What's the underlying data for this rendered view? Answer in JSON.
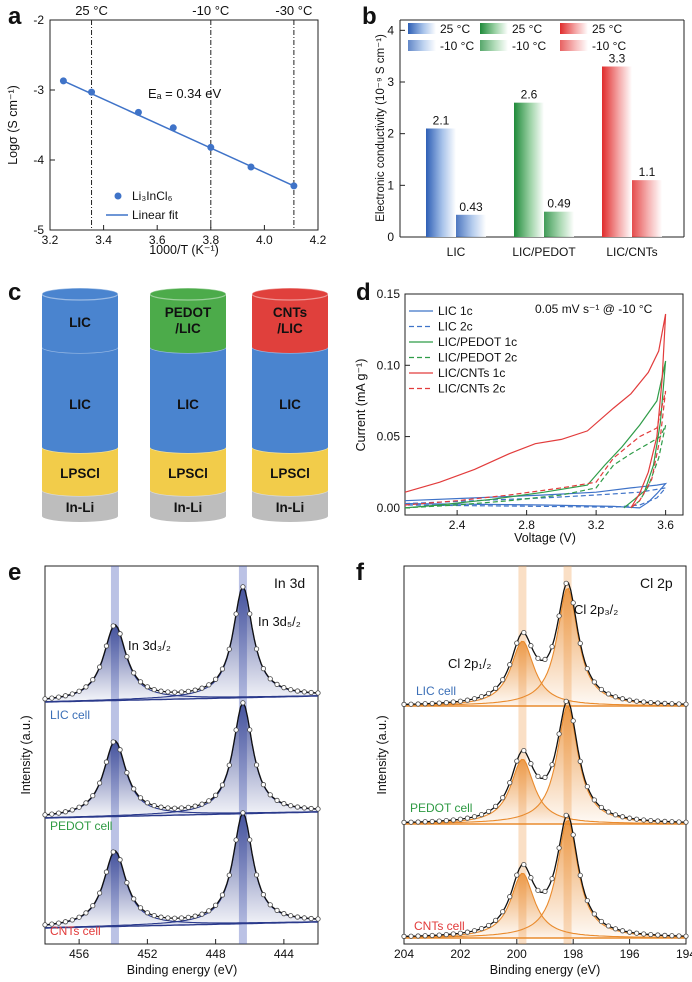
{
  "panel_labels": {
    "a": "a",
    "b": "b",
    "c": "c",
    "d": "d",
    "e": "e",
    "f": "f"
  },
  "colors": {
    "blue": "#3f73c8",
    "green": "#2f9c48",
    "red": "#e23c3c",
    "navy": "#2b3a8c",
    "orange": "#e98b2e",
    "cyl_blue": "#4a84cf",
    "cyl_green": "#4cab4a",
    "cyl_red": "#e0403c",
    "cyl_yellow": "#f2cc4a",
    "cyl_gray": "#bdbdbd",
    "label_blue": "#3b6fb7",
    "label_green": "#2e9a43",
    "label_red": "#e23b3b"
  },
  "chart_data": [
    {
      "id": "a",
      "type": "scatter",
      "xlabel": "1000/T (K⁻¹)",
      "ylabel": "Logσ (S cm⁻¹)",
      "xlim": [
        3.2,
        4.2
      ],
      "ylim": [
        -5,
        -2
      ],
      "xticks": [
        "3.2",
        "3.4",
        "3.6",
        "3.8",
        "4.0",
        "4.2"
      ],
      "yticks": [
        "-5",
        "-4",
        "-3",
        "-2"
      ],
      "points": [
        [
          3.25,
          -2.87
        ],
        [
          3.355,
          -3.03
        ],
        [
          3.53,
          -3.32
        ],
        [
          3.66,
          -3.54
        ],
        [
          3.8,
          -3.82
        ],
        [
          3.95,
          -4.1
        ],
        [
          4.11,
          -4.37
        ]
      ],
      "fit": [
        [
          3.25,
          -2.87
        ],
        [
          4.11,
          -4.37
        ]
      ],
      "top_markers": [
        {
          "x": 3.355,
          "label": "25 °C"
        },
        {
          "x": 3.8,
          "label": "-10 °C"
        },
        {
          "x": 4.11,
          "label": "-30 °C"
        }
      ],
      "annotation": "Eₐ = 0.34 eV",
      "legend": [
        "Li₃InCl₆",
        "Linear fit"
      ]
    },
    {
      "id": "b",
      "type": "bar",
      "ylabel": "Electronic conductivity (10⁻⁹ S cm⁻¹)",
      "categories": [
        "LIC",
        "LIC/PEDOT",
        "LIC/CNTs"
      ],
      "series": [
        {
          "name": "25 °C",
          "values": [
            2.1,
            2.6,
            3.3
          ]
        },
        {
          "name": "-10 °C",
          "values": [
            0.43,
            0.49,
            1.1
          ]
        }
      ],
      "data_labels": [
        [
          "2.1",
          "0.43"
        ],
        [
          "2.6",
          "0.49"
        ],
        [
          "3.3",
          "1.1"
        ]
      ],
      "ylim": [
        0,
        4.2
      ],
      "yticks": [
        "0",
        "1",
        "2",
        "3",
        "4"
      ],
      "legend": [
        "25 °C",
        "25 °C",
        "25 °C",
        "-10 °C",
        "-10 °C",
        "-10 °C"
      ]
    },
    {
      "id": "d",
      "type": "line",
      "xlabel": "Voltage (V)",
      "ylabel": "Current (mA g⁻¹)",
      "xlim": [
        2.1,
        3.7
      ],
      "ylim": [
        -0.005,
        0.15
      ],
      "xticks": [
        "2.4",
        "2.8",
        "3.2",
        "3.6"
      ],
      "yticks": [
        "0.00",
        "0.05",
        "0.10",
        "0.15"
      ],
      "annotation": "0.05 mV s⁻¹ @ -10 °C",
      "series": [
        {
          "name": "LIC 1c",
          "color": "blue",
          "dash": false,
          "fwd": [
            [
              2.1,
              0.005
            ],
            [
              2.5,
              0.007
            ],
            [
              2.9,
              0.009
            ],
            [
              3.2,
              0.011
            ],
            [
              3.4,
              0.014
            ],
            [
              3.55,
              0.016
            ],
            [
              3.6,
              0.017
            ]
          ],
          "back": [
            [
              3.6,
              0.017
            ],
            [
              3.55,
              0.01
            ],
            [
              3.5,
              0.004
            ],
            [
              3.45,
              0.0
            ],
            [
              3.3,
              0.001
            ],
            [
              2.9,
              0.002
            ],
            [
              2.1,
              0.003
            ]
          ]
        },
        {
          "name": "LIC 2c",
          "color": "blue",
          "dash": true,
          "fwd": [
            [
              2.1,
              0.003
            ],
            [
              2.5,
              0.005
            ],
            [
              2.9,
              0.007
            ],
            [
              3.2,
              0.009
            ],
            [
              3.45,
              0.011
            ],
            [
              3.6,
              0.014
            ]
          ],
          "back": [
            [
              3.6,
              0.014
            ],
            [
              3.55,
              0.007
            ],
            [
              3.45,
              0.002
            ],
            [
              3.3,
              0.0005
            ],
            [
              2.9,
              0.001
            ],
            [
              2.1,
              0.002
            ]
          ]
        },
        {
          "name": "LIC/PEDOT 1c",
          "color": "green",
          "dash": false,
          "fwd": [
            [
              2.1,
              0.0
            ],
            [
              2.3,
              0.002
            ],
            [
              2.6,
              0.006
            ],
            [
              2.9,
              0.011
            ],
            [
              3.15,
              0.016
            ],
            [
              3.25,
              0.03
            ],
            [
              3.35,
              0.043
            ],
            [
              3.45,
              0.058
            ],
            [
              3.55,
              0.075
            ],
            [
              3.6,
              0.103
            ]
          ],
          "back": [
            [
              3.6,
              0.103
            ],
            [
              3.57,
              0.06
            ],
            [
              3.53,
              0.03
            ],
            [
              3.48,
              0.012
            ],
            [
              3.4,
              0.004
            ],
            [
              3.36,
              0.0
            ]
          ]
        },
        {
          "name": "LIC/PEDOT 2c",
          "color": "green",
          "dash": true,
          "fwd": [
            [
              2.1,
              0.0
            ],
            [
              2.4,
              0.002
            ],
            [
              2.7,
              0.005
            ],
            [
              3.0,
              0.009
            ],
            [
              3.2,
              0.014
            ],
            [
              3.3,
              0.03
            ],
            [
              3.4,
              0.038
            ],
            [
              3.5,
              0.045
            ],
            [
              3.57,
              0.05
            ],
            [
              3.6,
              0.058
            ]
          ],
          "back": [
            [
              3.6,
              0.058
            ],
            [
              3.56,
              0.035
            ],
            [
              3.5,
              0.015
            ],
            [
              3.45,
              0.005
            ],
            [
              3.4,
              0.0
            ]
          ]
        },
        {
          "name": "LIC/CNTs 1c",
          "color": "red",
          "dash": false,
          "fwd": [
            [
              2.1,
              0.011
            ],
            [
              2.3,
              0.018
            ],
            [
              2.5,
              0.027
            ],
            [
              2.7,
              0.038
            ],
            [
              2.85,
              0.045
            ],
            [
              3.0,
              0.048
            ],
            [
              3.15,
              0.054
            ],
            [
              3.3,
              0.07
            ],
            [
              3.4,
              0.08
            ],
            [
              3.5,
              0.095
            ],
            [
              3.56,
              0.11
            ],
            [
              3.6,
              0.136
            ]
          ],
          "back": [
            [
              3.6,
              0.136
            ],
            [
              3.58,
              0.09
            ],
            [
              3.55,
              0.05
            ],
            [
              3.5,
              0.025
            ],
            [
              3.45,
              0.01
            ],
            [
              3.4,
              0.0
            ]
          ]
        },
        {
          "name": "LIC/CNTs 2c",
          "color": "red",
          "dash": true,
          "fwd": [
            [
              2.1,
              0.002
            ],
            [
              2.4,
              0.005
            ],
            [
              2.7,
              0.009
            ],
            [
              3.0,
              0.014
            ],
            [
              3.2,
              0.018
            ],
            [
              3.3,
              0.035
            ],
            [
              3.45,
              0.05
            ],
            [
              3.55,
              0.056
            ],
            [
              3.6,
              0.082
            ]
          ],
          "back": [
            [
              3.6,
              0.082
            ],
            [
              3.57,
              0.05
            ],
            [
              3.52,
              0.02
            ],
            [
              3.45,
              0.005
            ],
            [
              3.4,
              0.0
            ]
          ]
        }
      ]
    },
    {
      "id": "e",
      "type": "line",
      "title": "In 3d",
      "xlabel": "Binding energy (eV)",
      "ylabel": "Intensity (a.u.)",
      "xlim": [
        458,
        442
      ],
      "xticks": [
        "456",
        "452",
        "448",
        "444"
      ],
      "peak_positions": [
        453.9,
        446.4
      ],
      "peak_labels": [
        "In 3d₃/₂",
        "In 3d₅/₂"
      ],
      "peak_relative_heights": [
        0.68,
        1.0
      ],
      "stacks": [
        "LIC cell",
        "PEDOT cell",
        "CNTs cell"
      ]
    },
    {
      "id": "f",
      "type": "line",
      "title": "Cl 2p",
      "xlabel": "Binding energy (eV)",
      "ylabel": "Intensity (a.u.)",
      "xlim": [
        204,
        194
      ],
      "xticks": [
        "204",
        "202",
        "200",
        "198",
        "196",
        "194"
      ],
      "peak_positions": [
        199.8,
        198.2
      ],
      "peak_labels": [
        "Cl 2p₁/₂",
        "Cl 2p₃/₂"
      ],
      "peak_relative_heights": [
        0.55,
        1.0
      ],
      "stacks": [
        "LIC cell",
        "PEDOT cell",
        "CNTs cell"
      ]
    }
  ],
  "panel_c": {
    "cells": [
      {
        "top": "LIC",
        "mid": "LIC",
        "solid": "LPSCl",
        "anode": "In-Li",
        "top_color": "cyl_blue"
      },
      {
        "top": "PEDOT\n/LIC",
        "mid": "LIC",
        "solid": "LPSCl",
        "anode": "In-Li",
        "top_color": "cyl_green"
      },
      {
        "top": "CNTs\n/LIC",
        "mid": "LIC",
        "solid": "LPSCl",
        "anode": "In-Li",
        "top_color": "cyl_red"
      }
    ]
  }
}
